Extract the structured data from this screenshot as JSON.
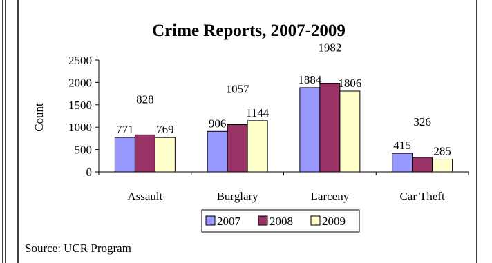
{
  "chart_data": {
    "type": "bar",
    "title": "Crime Reports, 2007-2009",
    "xlabel": "",
    "ylabel": "Count",
    "ylim": [
      0,
      2500
    ],
    "yticks": [
      0,
      500,
      1000,
      1500,
      2000,
      2500
    ],
    "categories": [
      "Assault",
      "Burglary",
      "Larceny",
      "Car Theft"
    ],
    "series": [
      {
        "name": "2007",
        "values": [
          771,
          906,
          1884,
          415
        ],
        "color": "#9999ff"
      },
      {
        "name": "2008",
        "values": [
          828,
          1057,
          1982,
          326
        ],
        "color": "#993366"
      },
      {
        "name": "2009",
        "values": [
          769,
          1144,
          1806,
          285
        ],
        "color": "#ffffcc"
      }
    ],
    "grid": false,
    "legend_position": "bottom"
  },
  "footer": {
    "source": "Source: UCR Program"
  }
}
